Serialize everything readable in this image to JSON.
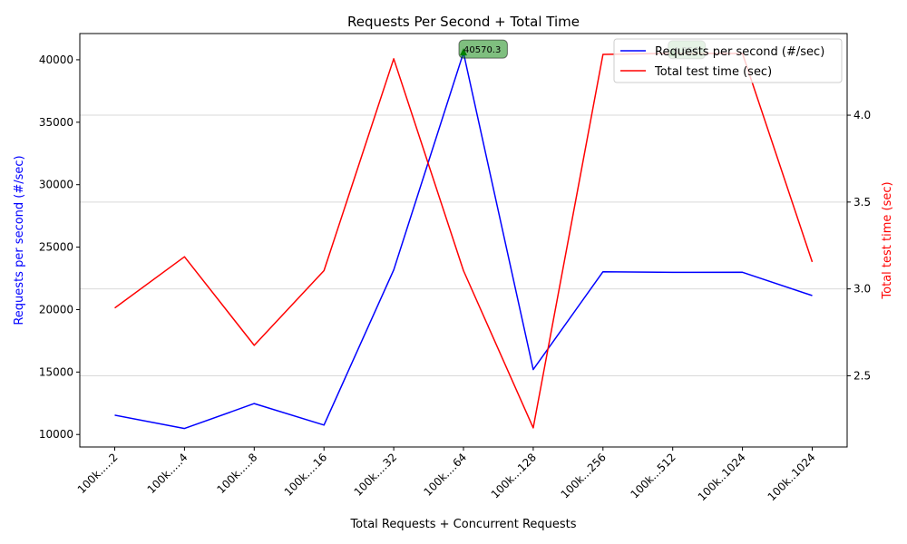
{
  "chart_data": {
    "type": "line",
    "title": "Requests Per Second + Total Time",
    "xlabel": "Total Requests + Concurrent Requests",
    "ylabel_left": "Requests per second (#/sec)",
    "ylabel_right": "Total test time (sec)",
    "categories": [
      "100k.....2",
      "100k.....4",
      "100k.....8",
      "100k....16",
      "100k....32",
      "100k....64",
      "100k...128",
      "100k...256",
      "100k...512",
      "100k..1024",
      "100k..1024"
    ],
    "series": [
      {
        "name": "Requests per second (#/sec)",
        "axis": "left",
        "color": "#0000ff",
        "values": [
          11550,
          10480,
          12480,
          10760,
          23180,
          40570.3,
          15200,
          23030,
          22980,
          22990,
          21120
        ]
      },
      {
        "name": "Total test time (sec)",
        "axis": "right",
        "color": "#ff0000",
        "values": [
          2.89,
          3.185,
          2.675,
          3.105,
          4.325,
          3.105,
          2.2,
          4.35,
          4.356,
          4.355,
          3.155
        ]
      }
    ],
    "ylim_left": [
      9000,
      42100
    ],
    "ylim_right": [
      2.09,
      4.47
    ],
    "yticks_left": [
      10000,
      15000,
      20000,
      25000,
      30000,
      35000,
      40000
    ],
    "yticks_right": [
      2.5,
      3.0,
      3.5,
      4.0
    ],
    "grid": "right-axis horizontal",
    "legend_placement": "top-right",
    "annotations": [
      {
        "label": "40570.3",
        "series": 0,
        "index": 5,
        "color": "#008000"
      },
      {
        "label": "4.356",
        "series": 1,
        "index": 8,
        "color": "#008000"
      }
    ]
  }
}
